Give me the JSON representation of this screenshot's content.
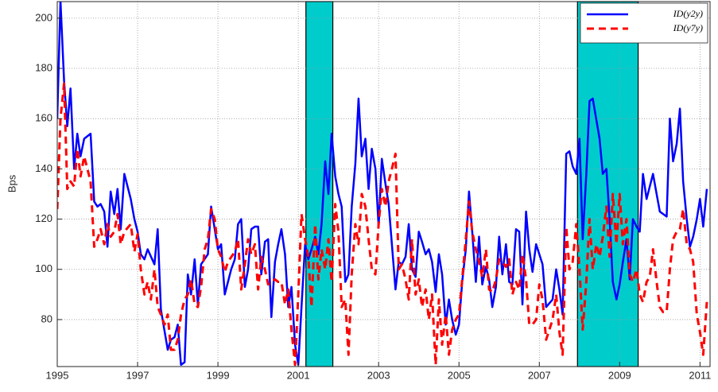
{
  "chart_data": {
    "type": "line",
    "y_label": "Bps",
    "xlim": [
      1995,
      2011.25
    ],
    "ylim": [
      61.3,
      206.6
    ],
    "xticks": [
      1995,
      1997,
      1999,
      2001,
      2003,
      2005,
      2007,
      2009,
      2011
    ],
    "yticks": [
      80,
      100,
      120,
      140,
      160,
      180,
      200
    ],
    "grid": true,
    "legend": "upper right",
    "shaded_periods": [
      [
        2001.19,
        2001.86
      ],
      [
        2007.95,
        2009.46
      ]
    ],
    "shade_color": "#00cccc",
    "series": [
      {
        "name": "ID(y2y)",
        "color": "#0000ff",
        "style": "solid",
        "x": [
          1995.0,
          1995.08,
          1995.17,
          1995.25,
          1995.33,
          1995.42,
          1995.5,
          1995.58,
          1995.67,
          1995.83,
          1995.92,
          1996.0,
          1996.08,
          1996.17,
          1996.25,
          1996.33,
          1996.42,
          1996.5,
          1996.58,
          1996.67,
          1996.83,
          1996.92,
          1997.0,
          1997.08,
          1997.17,
          1997.25,
          1997.42,
          1997.5,
          1997.58,
          1997.75,
          1997.83,
          1997.92,
          1998.0,
          1998.08,
          1998.17,
          1998.25,
          1998.33,
          1998.42,
          1998.5,
          1998.58,
          1998.75,
          1998.83,
          1998.92,
          1999.0,
          1999.08,
          1999.17,
          1999.33,
          1999.42,
          1999.5,
          1999.58,
          1999.67,
          1999.75,
          1999.83,
          1999.92,
          2000.0,
          2000.08,
          2000.17,
          2000.25,
          2000.33,
          2000.42,
          2000.5,
          2000.58,
          2000.67,
          2000.75,
          2000.83,
          2000.92,
          2001.0,
          2001.08,
          2001.17,
          2001.25,
          2001.33,
          2001.42,
          2001.5,
          2001.58,
          2001.67,
          2001.75,
          2001.83,
          2001.92,
          2002.0,
          2002.08,
          2002.17,
          2002.25,
          2002.33,
          2002.42,
          2002.5,
          2002.58,
          2002.67,
          2002.75,
          2002.83,
          2002.92,
          2003.0,
          2003.08,
          2003.17,
          2003.25,
          2003.42,
          2003.5,
          2003.58,
          2003.67,
          2003.75,
          2003.83,
          2003.92,
          2004.0,
          2004.08,
          2004.17,
          2004.25,
          2004.33,
          2004.42,
          2004.5,
          2004.58,
          2004.67,
          2004.75,
          2004.83,
          2004.92,
          2005.0,
          2005.08,
          2005.17,
          2005.25,
          2005.33,
          2005.42,
          2005.5,
          2005.58,
          2005.67,
          2005.75,
          2005.83,
          2005.92,
          2006.0,
          2006.08,
          2006.17,
          2006.25,
          2006.33,
          2006.42,
          2006.5,
          2006.58,
          2006.67,
          2006.75,
          2006.83,
          2006.92,
          2007.0,
          2007.08,
          2007.17,
          2007.33,
          2007.42,
          2007.5,
          2007.58,
          2007.67,
          2007.75,
          2007.83,
          2007.92,
          2008.0,
          2008.08,
          2008.17,
          2008.25,
          2008.33,
          2008.5,
          2008.58,
          2008.67,
          2008.75,
          2008.83,
          2008.92,
          2009.0,
          2009.08,
          2009.17,
          2009.25,
          2009.33,
          2009.42,
          2009.5,
          2009.58,
          2009.67,
          2009.75,
          2009.83,
          2009.92,
          2010.0,
          2010.17,
          2010.25,
          2010.33,
          2010.42,
          2010.5,
          2010.58,
          2010.67,
          2010.75,
          2010.83,
          2010.92,
          2011.0,
          2011.08,
          2011.17
        ],
        "values": [
          160,
          207,
          175,
          157,
          172,
          140,
          154,
          145,
          152,
          154,
          127,
          125,
          126,
          123,
          109,
          131,
          122,
          132,
          116,
          138,
          128,
          120,
          115,
          106,
          104,
          108,
          102,
          116,
          84,
          68,
          72,
          73,
          78,
          62,
          63,
          98,
          90,
          104,
          86,
          102,
          106,
          125,
          116,
          108,
          110,
          90,
          100,
          104,
          118,
          120,
          93,
          100,
          116,
          117,
          117,
          98,
          111,
          112,
          81,
          103,
          110,
          116,
          106,
          85,
          93,
          70,
          62,
          85,
          110,
          104,
          108,
          113,
          106,
          118,
          143,
          130,
          154,
          137,
          130,
          125,
          95,
          98,
          125,
          142,
          168,
          145,
          152,
          132,
          148,
          140,
          117,
          144,
          134,
          126,
          92,
          103,
          102,
          105,
          118,
          100,
          97,
          115,
          111,
          106,
          108,
          103,
          91,
          106,
          98,
          78,
          88,
          80,
          74,
          78,
          95,
          108,
          131,
          115,
          95,
          113,
          94,
          101,
          96,
          85,
          93,
          113,
          98,
          110,
          95,
          94,
          116,
          115,
          86,
          123,
          108,
          99,
          110,
          106,
          102,
          85,
          88,
          100,
          92,
          82,
          146,
          147,
          141,
          138,
          152,
          112,
          138,
          167,
          168,
          152,
          138,
          140,
          120,
          95,
          88,
          94,
          103,
          112,
          96,
          120,
          117,
          115,
          138,
          128,
          133,
          138,
          130,
          123,
          121,
          160,
          143,
          150,
          164,
          135,
          120,
          109,
          113,
          120,
          128,
          117,
          132
        ]
      },
      {
        "name": "ID(y7y)",
        "color": "#ff0000",
        "style": "dashed",
        "x": [
          1995.0,
          1995.08,
          1995.17,
          1995.25,
          1995.33,
          1995.42,
          1995.5,
          1995.58,
          1995.67,
          1995.83,
          1995.92,
          1996.0,
          1996.08,
          1996.17,
          1996.25,
          1996.33,
          1996.42,
          1996.5,
          1996.58,
          1996.67,
          1996.83,
          1996.92,
          1997.0,
          1997.08,
          1997.17,
          1997.25,
          1997.33,
          1997.42,
          1997.5,
          1997.58,
          1997.67,
          1997.75,
          1997.83,
          1997.92,
          1998.0,
          1998.08,
          1998.17,
          1998.25,
          1998.33,
          1998.42,
          1998.5,
          1998.58,
          1998.67,
          1998.75,
          1998.83,
          1998.92,
          1999.0,
          1999.08,
          1999.17,
          1999.25,
          1999.42,
          1999.5,
          1999.58,
          1999.67,
          1999.75,
          1999.83,
          1999.92,
          2000.0,
          2000.08,
          2000.17,
          2000.25,
          2000.42,
          2000.5,
          2000.58,
          2000.67,
          2000.75,
          2000.83,
          2000.92,
          2001.0,
          2001.08,
          2001.17,
          2001.25,
          2001.33,
          2001.42,
          2001.5,
          2001.58,
          2001.67,
          2001.75,
          2001.83,
          2001.92,
          2002.0,
          2002.08,
          2002.17,
          2002.25,
          2002.33,
          2002.42,
          2002.5,
          2002.58,
          2002.67,
          2002.75,
          2002.83,
          2002.92,
          2003.0,
          2003.08,
          2003.17,
          2003.25,
          2003.33,
          2003.42,
          2003.5,
          2003.58,
          2003.67,
          2003.75,
          2003.83,
          2003.92,
          2004.0,
          2004.08,
          2004.17,
          2004.25,
          2004.33,
          2004.42,
          2004.5,
          2004.58,
          2004.67,
          2004.75,
          2004.83,
          2004.92,
          2005.0,
          2005.08,
          2005.17,
          2005.25,
          2005.33,
          2005.42,
          2005.5,
          2005.58,
          2005.67,
          2005.75,
          2005.83,
          2005.92,
          2006.0,
          2006.08,
          2006.17,
          2006.25,
          2006.33,
          2006.42,
          2006.5,
          2006.58,
          2006.67,
          2006.75,
          2006.83,
          2006.92,
          2007.0,
          2007.08,
          2007.17,
          2007.33,
          2007.42,
          2007.5,
          2007.58,
          2007.67,
          2007.75,
          2007.83,
          2007.92,
          2008.0,
          2008.08,
          2008.17,
          2008.25,
          2008.33,
          2008.42,
          2008.5,
          2008.58,
          2008.67,
          2008.75,
          2008.83,
          2008.92,
          2009.0,
          2009.08,
          2009.17,
          2009.25,
          2009.33,
          2009.42,
          2009.5,
          2009.58,
          2009.67,
          2009.75,
          2009.83,
          2009.92,
          2010.0,
          2010.08,
          2010.17,
          2010.25,
          2010.33,
          2010.42,
          2010.5,
          2010.58,
          2010.67,
          2010.75,
          2010.83,
          2010.92,
          2011.0,
          2011.08,
          2011.17
        ],
        "values": [
          124,
          160,
          174,
          132,
          135,
          133,
          148,
          137,
          145,
          135,
          109,
          112,
          116,
          110,
          118,
          113,
          115,
          122,
          110,
          115,
          118,
          107,
          114,
          100,
          90,
          95,
          88,
          100,
          85,
          82,
          78,
          82,
          68,
          68,
          72,
          82,
          88,
          90,
          96,
          86,
          85,
          93,
          108,
          112,
          124,
          120,
          108,
          105,
          99,
          103,
          107,
          112,
          92,
          102,
          112,
          106,
          110,
          92,
          105,
          100,
          94,
          96,
          95,
          95,
          86,
          92,
          76,
          62,
          90,
          122,
          112,
          105,
          85,
          118,
          96,
          108,
          100,
          112,
          95,
          126,
          115,
          85,
          88,
          66,
          98,
          118,
          110,
          130,
          125,
          112,
          100,
          98,
          118,
          132,
          125,
          135,
          140,
          146,
          100,
          102,
          96,
          88,
          112,
          90,
          96,
          85,
          92,
          80,
          90,
          62,
          88,
          70,
          82,
          66,
          76,
          80,
          82,
          96,
          112,
          127,
          115,
          108,
          103,
          97,
          108,
          92,
          91,
          96,
          104,
          103,
          101,
          104,
          90,
          95,
          92,
          106,
          96,
          78,
          78,
          80,
          94,
          88,
          72,
          80,
          90,
          75,
          66,
          117,
          100,
          103,
          118,
          100,
          76,
          95,
          120,
          100,
          110,
          105,
          113,
          125,
          105,
          130,
          110,
          130,
          110,
          120,
          98,
          95,
          100,
          90,
          87,
          95,
          97,
          108,
          95,
          85,
          83,
          83,
          100,
          112,
          115,
          116,
          124,
          110,
          108,
          103,
          82,
          75,
          66,
          87
        ]
      }
    ]
  }
}
